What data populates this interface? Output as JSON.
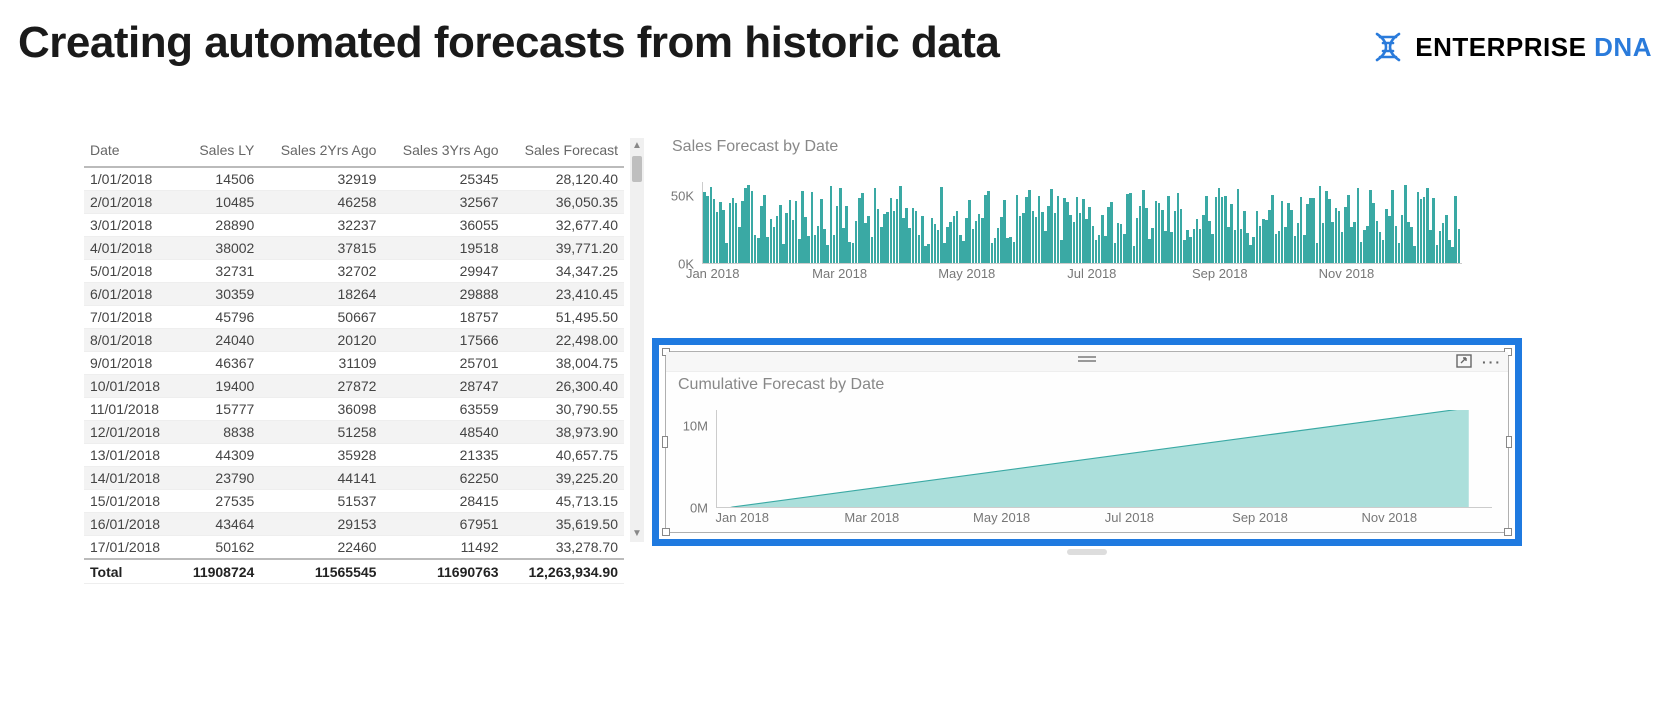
{
  "page": {
    "title": "Creating automated forecasts from historic data"
  },
  "logo": {
    "company": "ENTERPRISE",
    "product": "DNA",
    "icon_color": "#2a7bdb",
    "text_color": "#2a2a2a"
  },
  "table": {
    "columns": [
      "Date",
      "Sales LY",
      "Sales 2Yrs Ago",
      "Sales 3Yrs Ago",
      "Sales Forecast"
    ],
    "column_align": [
      "left",
      "right",
      "right",
      "right",
      "right"
    ],
    "rows": [
      [
        "1/01/2018",
        "14506",
        "32919",
        "25345",
        "28,120.40"
      ],
      [
        "2/01/2018",
        "10485",
        "46258",
        "32567",
        "36,050.35"
      ],
      [
        "3/01/2018",
        "28890",
        "32237",
        "36055",
        "32,677.40"
      ],
      [
        "4/01/2018",
        "38002",
        "37815",
        "19518",
        "39,771.20"
      ],
      [
        "5/01/2018",
        "32731",
        "32702",
        "29947",
        "34,347.25"
      ],
      [
        "6/01/2018",
        "30359",
        "18264",
        "29888",
        "23,410.45"
      ],
      [
        "7/01/2018",
        "45796",
        "50667",
        "18757",
        "51,495.50"
      ],
      [
        "8/01/2018",
        "24040",
        "20120",
        "17566",
        "22,498.00"
      ],
      [
        "9/01/2018",
        "46367",
        "31109",
        "25701",
        "38,004.75"
      ],
      [
        "10/01/2018",
        "19400",
        "27872",
        "28747",
        "26,300.40"
      ],
      [
        "11/01/2018",
        "15777",
        "36098",
        "63559",
        "30,790.55"
      ],
      [
        "12/01/2018",
        "8838",
        "51258",
        "48540",
        "38,973.90"
      ],
      [
        "13/01/2018",
        "44309",
        "35928",
        "21335",
        "40,657.75"
      ],
      [
        "14/01/2018",
        "23790",
        "44141",
        "62250",
        "39,225.20"
      ],
      [
        "15/01/2018",
        "27535",
        "51537",
        "28415",
        "45,713.15"
      ],
      [
        "16/01/2018",
        "43464",
        "29153",
        "67951",
        "35,619.50"
      ],
      [
        "17/01/2018",
        "50162",
        "22460",
        "11492",
        "33,278.70"
      ]
    ],
    "footer": [
      "Total",
      "11908724",
      "11565545",
      "11690763",
      "12,263,934.90"
    ]
  },
  "bar_chart": {
    "title": "Sales Forecast by Date",
    "type": "bar",
    "ylim": [
      0,
      60000
    ],
    "yticks": [
      {
        "v": 50000,
        "label": "50K"
      },
      {
        "v": 0,
        "label": "0K"
      }
    ],
    "xticks": [
      "Jan 2018",
      "Mar 2018",
      "May 2018",
      "Jul 2018",
      "Sep 2018",
      "Nov 2018"
    ],
    "bar_color": "#3aa9a4",
    "background_color": "#ffffff",
    "axis_color": "#cccccc",
    "label_color": "#777777",
    "label_fontsize": 13,
    "n_bars": 240,
    "value_min": 12000,
    "value_max": 58000
  },
  "area_chart": {
    "title": "Cumulative Forecast by Date",
    "type": "area",
    "ylim": [
      0,
      12000000
    ],
    "yticks": [
      {
        "v": 10000000,
        "label": "10M"
      },
      {
        "v": 0,
        "label": "0M"
      }
    ],
    "xticks": [
      "Jan 2018",
      "Mar 2018",
      "May 2018",
      "Jul 2018",
      "Sep 2018",
      "Nov 2018"
    ],
    "fill_color": "#8fd4cf",
    "fill_opacity": 0.75,
    "stroke_color": "#3aa9a4",
    "stroke_width": 1.5,
    "background_color": "#ffffff",
    "axis_color": "#cccccc",
    "label_color": "#777777",
    "label_fontsize": 13,
    "selection_border_color": "#1f7ae0",
    "start_value": 0,
    "end_value": 12263935
  }
}
